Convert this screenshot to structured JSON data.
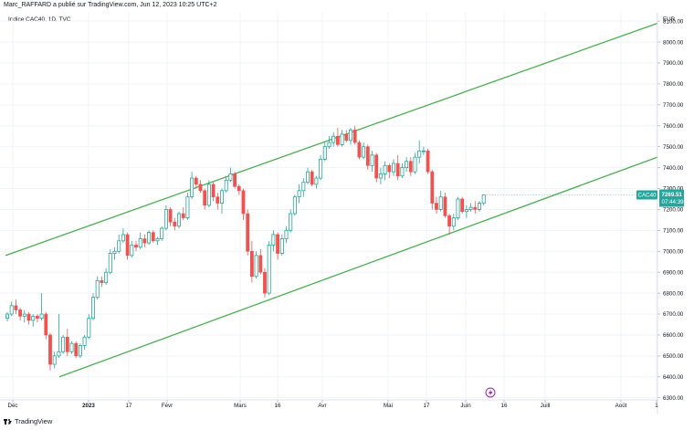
{
  "header": {
    "text": "Marc_RAFFARD a publié sur TradingView.com, Jun 12, 2023 10:25 UTC+2"
  },
  "legend": {
    "text": "Indice CAC40, 1D, TVC"
  },
  "footer": {
    "logo_text": "TradingView"
  },
  "price_tag": {
    "symbol": "CAC40",
    "price": "7269.51",
    "countdown": "07:44:39"
  },
  "colors": {
    "up": "#26a69a",
    "down": "#ef5350",
    "channel": "#4caf50",
    "grid": "#f0f3fa",
    "tag_bg": "#26a69a"
  },
  "event_icon": "lightning-icon",
  "chart_data": {
    "type": "candlestick",
    "y_unit": "EUR",
    "ylim": [
      6290,
      8140
    ],
    "y_ticks": [
      "8100.00",
      "8000.00",
      "7900.00",
      "7800.00",
      "7700.00",
      "7600.00",
      "7500.00",
      "7400.00",
      "7300.00",
      "7200.00",
      "7100.00",
      "7000.00",
      "6900.00",
      "6800.00",
      "6700.00",
      "6600.00",
      "6500.00",
      "6400.00",
      "6300.00"
    ],
    "x_ticks": [
      {
        "label": "Déc",
        "bold": false
      },
      {
        "label": "2023",
        "bold": true
      },
      {
        "label": "17",
        "bold": false
      },
      {
        "label": "Févr",
        "bold": false
      },
      {
        "label": "Mars",
        "bold": false
      },
      {
        "label": "16",
        "bold": false
      },
      {
        "label": "Avr",
        "bold": false
      },
      {
        "label": "Mai",
        "bold": false
      },
      {
        "label": "17",
        "bold": false
      },
      {
        "label": "Juin",
        "bold": false
      },
      {
        "label": "16",
        "bold": false
      },
      {
        "label": "Juill",
        "bold": false
      },
      {
        "label": "Août",
        "bold": false
      },
      {
        "label": "1",
        "bold": false
      }
    ],
    "grid": true,
    "candles": [
      {
        "o": 6680,
        "h": 6710,
        "l": 6665,
        "c": 6700
      },
      {
        "o": 6700,
        "h": 6760,
        "l": 6690,
        "c": 6740
      },
      {
        "o": 6740,
        "h": 6770,
        "l": 6700,
        "c": 6720
      },
      {
        "o": 6720,
        "h": 6730,
        "l": 6670,
        "c": 6690
      },
      {
        "o": 6690,
        "h": 6720,
        "l": 6660,
        "c": 6700
      },
      {
        "o": 6700,
        "h": 6710,
        "l": 6650,
        "c": 6670
      },
      {
        "o": 6670,
        "h": 6700,
        "l": 6640,
        "c": 6690
      },
      {
        "o": 6690,
        "h": 6700,
        "l": 6660,
        "c": 6680
      },
      {
        "o": 6680,
        "h": 6800,
        "l": 6670,
        "c": 6700
      },
      {
        "o": 6700,
        "h": 6710,
        "l": 6580,
        "c": 6600
      },
      {
        "o": 6600,
        "h": 6610,
        "l": 6430,
        "c": 6460
      },
      {
        "o": 6460,
        "h": 6520,
        "l": 6440,
        "c": 6500
      },
      {
        "o": 6500,
        "h": 6700,
        "l": 6490,
        "c": 6520
      },
      {
        "o": 6520,
        "h": 6600,
        "l": 6510,
        "c": 6590
      },
      {
        "o": 6590,
        "h": 6630,
        "l": 6500,
        "c": 6520
      },
      {
        "o": 6520,
        "h": 6570,
        "l": 6510,
        "c": 6560
      },
      {
        "o": 6560,
        "h": 6570,
        "l": 6490,
        "c": 6500
      },
      {
        "o": 6500,
        "h": 6560,
        "l": 6490,
        "c": 6550
      },
      {
        "o": 6550,
        "h": 6600,
        "l": 6530,
        "c": 6590
      },
      {
        "o": 6590,
        "h": 6700,
        "l": 6580,
        "c": 6680
      },
      {
        "o": 6680,
        "h": 6800,
        "l": 6670,
        "c": 6780
      },
      {
        "o": 6780,
        "h": 6880,
        "l": 6770,
        "c": 6860
      },
      {
        "o": 6860,
        "h": 6880,
        "l": 6830,
        "c": 6850
      },
      {
        "o": 6850,
        "h": 6920,
        "l": 6840,
        "c": 6900
      },
      {
        "o": 6900,
        "h": 7010,
        "l": 6890,
        "c": 6990
      },
      {
        "o": 6990,
        "h": 7020,
        "l": 6960,
        "c": 7000
      },
      {
        "o": 7000,
        "h": 7080,
        "l": 6990,
        "c": 7050
      },
      {
        "o": 7050,
        "h": 7110,
        "l": 7040,
        "c": 7080
      },
      {
        "o": 7080,
        "h": 7090,
        "l": 6960,
        "c": 6980
      },
      {
        "o": 6980,
        "h": 7050,
        "l": 6970,
        "c": 7030
      },
      {
        "o": 7030,
        "h": 7050,
        "l": 7000,
        "c": 7020
      },
      {
        "o": 7020,
        "h": 7090,
        "l": 7010,
        "c": 7060
      },
      {
        "o": 7060,
        "h": 7080,
        "l": 7020,
        "c": 7040
      },
      {
        "o": 7040,
        "h": 7100,
        "l": 7030,
        "c": 7090
      },
      {
        "o": 7090,
        "h": 7100,
        "l": 7040,
        "c": 7050
      },
      {
        "o": 7050,
        "h": 7070,
        "l": 7030,
        "c": 7060
      },
      {
        "o": 7060,
        "h": 7120,
        "l": 7050,
        "c": 7110
      },
      {
        "o": 7110,
        "h": 7220,
        "l": 7100,
        "c": 7200
      },
      {
        "o": 7200,
        "h": 7210,
        "l": 7120,
        "c": 7140
      },
      {
        "o": 7140,
        "h": 7160,
        "l": 7100,
        "c": 7120
      },
      {
        "o": 7120,
        "h": 7190,
        "l": 7110,
        "c": 7180
      },
      {
        "o": 7180,
        "h": 7210,
        "l": 7150,
        "c": 7160
      },
      {
        "o": 7160,
        "h": 7280,
        "l": 7150,
        "c": 7260
      },
      {
        "o": 7260,
        "h": 7380,
        "l": 7250,
        "c": 7350
      },
      {
        "o": 7350,
        "h": 7360,
        "l": 7300,
        "c": 7320
      },
      {
        "o": 7320,
        "h": 7340,
        "l": 7280,
        "c": 7290
      },
      {
        "o": 7290,
        "h": 7300,
        "l": 7200,
        "c": 7220
      },
      {
        "o": 7220,
        "h": 7340,
        "l": 7210,
        "c": 7320
      },
      {
        "o": 7320,
        "h": 7330,
        "l": 7240,
        "c": 7260
      },
      {
        "o": 7260,
        "h": 7280,
        "l": 7200,
        "c": 7230
      },
      {
        "o": 7230,
        "h": 7300,
        "l": 7180,
        "c": 7290
      },
      {
        "o": 7290,
        "h": 7360,
        "l": 7280,
        "c": 7340
      },
      {
        "o": 7340,
        "h": 7400,
        "l": 7330,
        "c": 7370
      },
      {
        "o": 7370,
        "h": 7380,
        "l": 7300,
        "c": 7310
      },
      {
        "o": 7310,
        "h": 7320,
        "l": 7270,
        "c": 7290
      },
      {
        "o": 7290,
        "h": 7300,
        "l": 7150,
        "c": 7180
      },
      {
        "o": 7180,
        "h": 7200,
        "l": 6980,
        "c": 7000
      },
      {
        "o": 7000,
        "h": 7050,
        "l": 6850,
        "c": 6880
      },
      {
        "o": 6880,
        "h": 7000,
        "l": 6870,
        "c": 6980
      },
      {
        "o": 6980,
        "h": 7010,
        "l": 6890,
        "c": 6900
      },
      {
        "o": 6900,
        "h": 6920,
        "l": 6780,
        "c": 6800
      },
      {
        "o": 6800,
        "h": 7050,
        "l": 6790,
        "c": 7030
      },
      {
        "o": 7030,
        "h": 7100,
        "l": 7000,
        "c": 7080
      },
      {
        "o": 7080,
        "h": 7090,
        "l": 6960,
        "c": 6990
      },
      {
        "o": 6990,
        "h": 7080,
        "l": 6980,
        "c": 7060
      },
      {
        "o": 7060,
        "h": 7120,
        "l": 7040,
        "c": 7100
      },
      {
        "o": 7100,
        "h": 7200,
        "l": 7090,
        "c": 7180
      },
      {
        "o": 7180,
        "h": 7270,
        "l": 7170,
        "c": 7260
      },
      {
        "o": 7260,
        "h": 7320,
        "l": 7230,
        "c": 7290
      },
      {
        "o": 7290,
        "h": 7350,
        "l": 7260,
        "c": 7330
      },
      {
        "o": 7330,
        "h": 7400,
        "l": 7320,
        "c": 7380
      },
      {
        "o": 7380,
        "h": 7390,
        "l": 7310,
        "c": 7320
      },
      {
        "o": 7320,
        "h": 7360,
        "l": 7300,
        "c": 7350
      },
      {
        "o": 7350,
        "h": 7460,
        "l": 7340,
        "c": 7440
      },
      {
        "o": 7440,
        "h": 7520,
        "l": 7430,
        "c": 7500
      },
      {
        "o": 7500,
        "h": 7550,
        "l": 7490,
        "c": 7520
      },
      {
        "o": 7520,
        "h": 7570,
        "l": 7500,
        "c": 7550
      },
      {
        "o": 7550,
        "h": 7590,
        "l": 7500,
        "c": 7510
      },
      {
        "o": 7510,
        "h": 7580,
        "l": 7500,
        "c": 7560
      },
      {
        "o": 7560,
        "h": 7580,
        "l": 7520,
        "c": 7530
      },
      {
        "o": 7530,
        "h": 7590,
        "l": 7510,
        "c": 7580
      },
      {
        "o": 7580,
        "h": 7600,
        "l": 7510,
        "c": 7520
      },
      {
        "o": 7520,
        "h": 7530,
        "l": 7440,
        "c": 7450
      },
      {
        "o": 7450,
        "h": 7520,
        "l": 7440,
        "c": 7500
      },
      {
        "o": 7500,
        "h": 7510,
        "l": 7390,
        "c": 7410
      },
      {
        "o": 7410,
        "h": 7480,
        "l": 7380,
        "c": 7460
      },
      {
        "o": 7460,
        "h": 7470,
        "l": 7330,
        "c": 7350
      },
      {
        "o": 7350,
        "h": 7400,
        "l": 7320,
        "c": 7370
      },
      {
        "o": 7370,
        "h": 7430,
        "l": 7340,
        "c": 7410
      },
      {
        "o": 7410,
        "h": 7420,
        "l": 7350,
        "c": 7380
      },
      {
        "o": 7380,
        "h": 7440,
        "l": 7360,
        "c": 7420
      },
      {
        "o": 7420,
        "h": 7460,
        "l": 7340,
        "c": 7360
      },
      {
        "o": 7360,
        "h": 7420,
        "l": 7350,
        "c": 7400
      },
      {
        "o": 7400,
        "h": 7450,
        "l": 7380,
        "c": 7430
      },
      {
        "o": 7430,
        "h": 7450,
        "l": 7360,
        "c": 7380
      },
      {
        "o": 7380,
        "h": 7470,
        "l": 7370,
        "c": 7450
      },
      {
        "o": 7450,
        "h": 7530,
        "l": 7420,
        "c": 7480
      },
      {
        "o": 7480,
        "h": 7500,
        "l": 7460,
        "c": 7480
      },
      {
        "o": 7480,
        "h": 7490,
        "l": 7370,
        "c": 7380
      },
      {
        "o": 7380,
        "h": 7390,
        "l": 7200,
        "c": 7230
      },
      {
        "o": 7230,
        "h": 7260,
        "l": 7180,
        "c": 7200
      },
      {
        "o": 7200,
        "h": 7290,
        "l": 7190,
        "c": 7260
      },
      {
        "o": 7260,
        "h": 7280,
        "l": 7160,
        "c": 7170
      },
      {
        "o": 7170,
        "h": 7180,
        "l": 7080,
        "c": 7120
      },
      {
        "o": 7120,
        "h": 7180,
        "l": 7100,
        "c": 7160
      },
      {
        "o": 7160,
        "h": 7260,
        "l": 7150,
        "c": 7250
      },
      {
        "o": 7250,
        "h": 7260,
        "l": 7180,
        "c": 7190
      },
      {
        "o": 7190,
        "h": 7220,
        "l": 7160,
        "c": 7200
      },
      {
        "o": 7200,
        "h": 7230,
        "l": 7190,
        "c": 7210
      },
      {
        "o": 7210,
        "h": 7240,
        "l": 7180,
        "c": 7200
      },
      {
        "o": 7200,
        "h": 7240,
        "l": 7190,
        "c": 7230
      },
      {
        "o": 7230,
        "h": 7270,
        "l": 7220,
        "c": 7269.51
      }
    ],
    "channel_lines": [
      {
        "x0": 0,
        "y0": 6980,
        "x1": 185,
        "y1": 8090
      },
      {
        "x0": 13,
        "y0": 6400,
        "x1": 185,
        "y1": 7450
      }
    ]
  }
}
